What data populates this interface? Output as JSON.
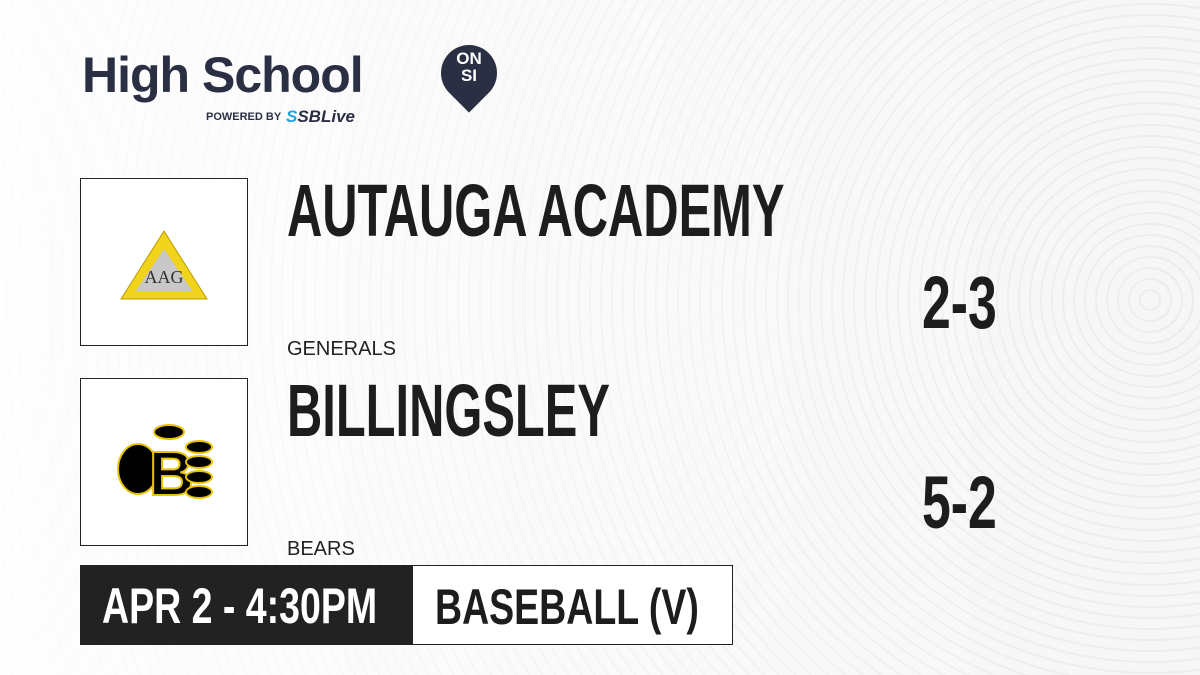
{
  "brand": {
    "title": "High School",
    "badge_line1": "ON",
    "badge_line2": "SI",
    "powered_by": "POWERED BY",
    "partner_prefix": "S",
    "partner": "SBLive"
  },
  "teams": [
    {
      "name": "AUTAUGA ACADEMY",
      "mascot": "GENERALS",
      "record": "2-3",
      "logo_colors": [
        "#f2d31b",
        "#c8c8c8"
      ]
    },
    {
      "name": "BILLINGSLEY",
      "mascot": "BEARS",
      "record": "5-2",
      "logo_colors": [
        "#000000",
        "#e8c300"
      ]
    }
  ],
  "game": {
    "datetime": "APR 2 - 4:30PM",
    "sport": "BASEBALL (V)"
  }
}
